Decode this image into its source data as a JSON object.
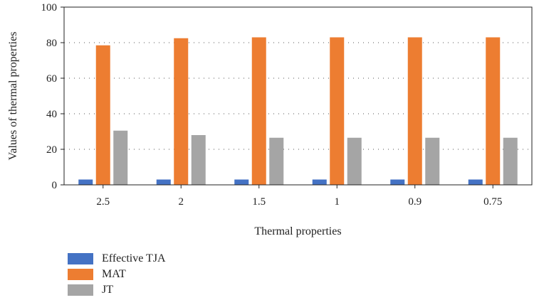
{
  "chart_data": {
    "type": "bar",
    "categories": [
      "2.5",
      "2",
      "1.5",
      "1",
      "0.9",
      "0.75"
    ],
    "series": [
      {
        "name": "Effective TJA",
        "color": "#4472c4",
        "values": [
          3,
          3,
          3,
          3,
          3,
          3
        ]
      },
      {
        "name": "MAT",
        "color": "#ed7d31",
        "values": [
          78.5,
          82.5,
          83,
          83,
          83,
          83
        ]
      },
      {
        "name": "JT",
        "color": "#a5a5a5",
        "values": [
          30.5,
          28,
          26.5,
          26.5,
          26.5,
          26.5
        ]
      }
    ],
    "xlabel": "Thermal properties",
    "ylabel": "Values of thermal properties",
    "ylim": [
      0,
      100
    ],
    "yticks": [
      0,
      20,
      40,
      60,
      80,
      100
    ],
    "grid": "horizontal dotted",
    "legend_position": "bottom-left"
  }
}
